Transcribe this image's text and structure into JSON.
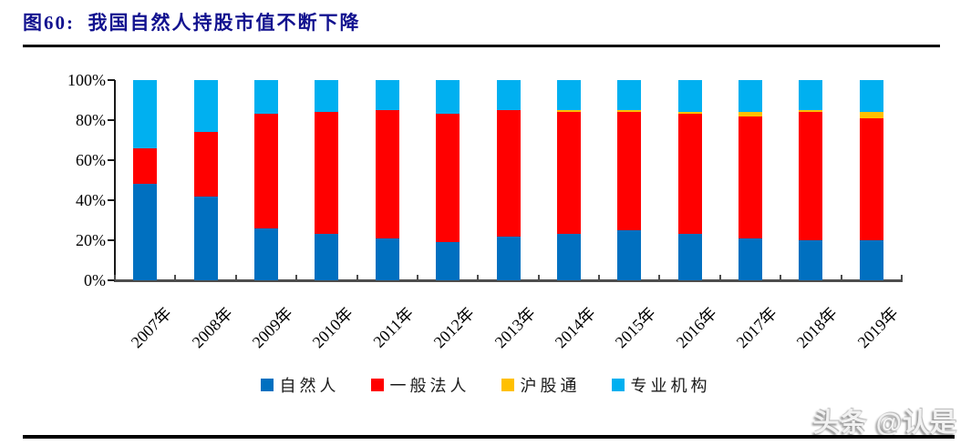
{
  "header": {
    "title": "图60:  我国自然人持股市值不断下降"
  },
  "chart_data": {
    "type": "bar",
    "stacked": true,
    "normalized": "100%",
    "title": "图60: 我国自然人持股市值不断下降",
    "xlabel": "",
    "ylabel": "",
    "categories": [
      "2007年",
      "2008年",
      "2009年",
      "2010年",
      "2011年",
      "2012年",
      "2013年",
      "2014年",
      "2015年",
      "2016年",
      "2017年",
      "2018年",
      "2019年"
    ],
    "series": [
      {
        "name": "自然人",
        "color": "#0070C0",
        "values": [
          48,
          42,
          26,
          23,
          21,
          19,
          22,
          23,
          25,
          23,
          21,
          20,
          20
        ]
      },
      {
        "name": "一般法人",
        "color": "#FF0000",
        "values": [
          18,
          32,
          57,
          61,
          64,
          64,
          63,
          61,
          59,
          60,
          61,
          64,
          61
        ]
      },
      {
        "name": "沪股通",
        "color": "#FFC000",
        "values": [
          0,
          0,
          0,
          0,
          0,
          0,
          0,
          1,
          1,
          1,
          2,
          1,
          3
        ]
      },
      {
        "name": "专业机构",
        "color": "#00B0F0",
        "values": [
          34,
          26,
          17,
          16,
          15,
          17,
          15,
          15,
          15,
          16,
          16,
          15,
          16
        ]
      }
    ],
    "ylim": [
      0,
      100
    ],
    "ytick_labels": [
      "0%",
      "20%",
      "40%",
      "60%",
      "80%",
      "100%"
    ],
    "yticks": [
      0,
      20,
      40,
      60,
      80,
      100
    ],
    "grid": false,
    "legend_position": "bottom"
  },
  "watermark": "头条 @认是"
}
